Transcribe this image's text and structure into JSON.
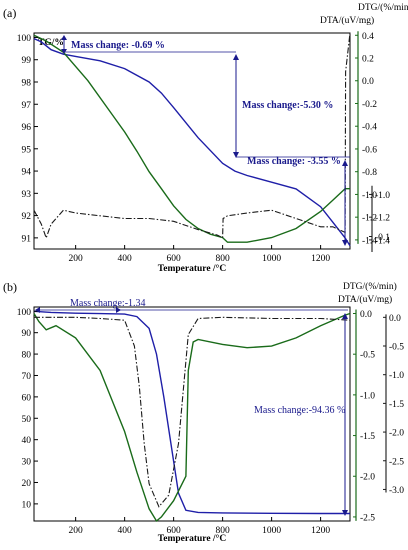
{
  "colors": {
    "tg": "#1f1fa8",
    "dtg": "#1a1a1a",
    "dta": "#1a6b1a",
    "annotation": "#1a1a8c"
  },
  "chart_data": [
    {
      "panel": "(a)",
      "type": "line",
      "xlabel": "Temperature /°C",
      "ylabel_left": "TG/%",
      "ylabel_right_1": "DTG/(%/min)",
      "ylabel_right_2": "DTA/(uV/mg)",
      "xlim": [
        30,
        1320
      ],
      "ylim_left": [
        90.5,
        100.2
      ],
      "ylim_dta": [
        -1.48,
        0.42
      ],
      "ylim_dtg": [
        -0.14,
        0.64
      ],
      "x_ticks": [
        "200",
        "400",
        "600",
        "800",
        "1000",
        "1200"
      ],
      "y_ticks_left": [
        "100",
        "99",
        "98",
        "97",
        "96",
        "95",
        "94",
        "93",
        "92",
        "91"
      ],
      "y_ticks_dta": [
        "0.4",
        "0.2",
        "0.0",
        "-0.2",
        "-0.4",
        "-0.6",
        "-0.8",
        "-1.0",
        "-1.2",
        "-1.4"
      ],
      "y_ticks_dtg": [
        "-1.0",
        "-1.2",
        "-1.4",
        "-0.1"
      ],
      "annotations": [
        "Mass change: -0.69 %",
        "Mass change:-5.30 %",
        "Mass change: -3.55 %"
      ],
      "series": [
        {
          "name": "TG",
          "axis": "left",
          "x": [
            30,
            60,
            100,
            150,
            200,
            300,
            400,
            500,
            550,
            600,
            700,
            800,
            850,
            900,
            1000,
            1100,
            1200,
            1250,
            1300,
            1320
          ],
          "y": [
            99.95,
            99.8,
            99.45,
            99.25,
            99.15,
            98.95,
            98.6,
            98.0,
            97.5,
            96.85,
            95.5,
            94.35,
            94.0,
            93.8,
            93.5,
            93.2,
            92.4,
            91.7,
            91.0,
            90.65
          ]
        },
        {
          "name": "DTA",
          "axis": "dta",
          "x": [
            30,
            80,
            150,
            250,
            350,
            400,
            450,
            500,
            550,
            600,
            650,
            700,
            750,
            800,
            820,
            900,
            1000,
            1100,
            1200,
            1250,
            1300,
            1320
          ],
          "y": [
            0.4,
            0.35,
            0.25,
            0.0,
            -0.3,
            -0.45,
            -0.62,
            -0.8,
            -0.95,
            -1.1,
            -1.22,
            -1.3,
            -1.35,
            -1.38,
            -1.42,
            -1.42,
            -1.38,
            -1.3,
            -1.15,
            -1.05,
            -0.95,
            -0.95
          ]
        },
        {
          "name": "DTG",
          "axis": "dtg",
          "x": [
            30,
            60,
            80,
            100,
            150,
            200,
            300,
            400,
            500,
            600,
            700,
            780,
            800,
            802,
            820,
            900,
            1000,
            1100,
            1200,
            1250,
            1300,
            1302,
            1320
          ],
          "y": [
            0.0,
            -0.05,
            -0.1,
            -0.05,
            0.0,
            -0.01,
            -0.02,
            -0.03,
            -0.03,
            -0.04,
            -0.07,
            -0.09,
            -0.1,
            -0.03,
            -0.02,
            -0.01,
            0.0,
            -0.03,
            -0.06,
            -0.06,
            -0.08,
            0.5,
            0.64
          ]
        }
      ]
    },
    {
      "panel": "(b)",
      "type": "line",
      "xlabel": "Temperature /°C",
      "ylabel_right_1": "DTG/(%/min)",
      "ylabel_right_2": "DTA/(uV/mg)",
      "xlim": [
        30,
        1320
      ],
      "ylim_left": [
        2,
        102
      ],
      "ylim_dta": [
        -2.55,
        0.08
      ],
      "ylim_dtg": [
        -3.55,
        0.18
      ],
      "x_ticks": [
        "200",
        "400",
        "600",
        "800",
        "1000",
        "1200"
      ],
      "y_ticks_left": [
        "100",
        "90",
        "80",
        "70",
        "60",
        "50",
        "40",
        "30",
        "20",
        "10"
      ],
      "y_ticks_dta": [
        "0.0",
        "-0.5",
        "-1.0",
        "-1.5",
        "-2.0",
        "-2.5"
      ],
      "y_ticks_dtg": [
        "0.0",
        "-0.5",
        "-1.0",
        "-1.5",
        "-2.0",
        "-2.5",
        "-3.0"
      ],
      "annotations": [
        "Mass change:-1.34",
        "Mass change:-94.36 %"
      ],
      "series": [
        {
          "name": "TG",
          "axis": "left",
          "x": [
            30,
            100,
            200,
            300,
            400,
            450,
            500,
            530,
            560,
            580,
            600,
            620,
            650,
            700,
            800,
            1000,
            1200,
            1320
          ],
          "y": [
            100,
            99.5,
            99.1,
            98.9,
            98.7,
            97.5,
            92,
            80,
            60,
            45,
            30,
            15,
            7,
            6,
            5.8,
            5.6,
            5.5,
            5.5
          ]
        },
        {
          "name": "DTA",
          "axis": "dta",
          "x": [
            30,
            50,
            80,
            120,
            200,
            300,
            400,
            450,
            500,
            530,
            550,
            600,
            650,
            660,
            680,
            700,
            800,
            900,
            1000,
            1100,
            1200,
            1300,
            1320
          ],
          "y": [
            0.0,
            -0.1,
            -0.2,
            -0.15,
            -0.3,
            -0.7,
            -1.45,
            -1.95,
            -2.4,
            -2.55,
            -2.5,
            -2.3,
            -2.0,
            -0.7,
            -0.35,
            -0.32,
            -0.38,
            -0.42,
            -0.4,
            -0.3,
            -0.15,
            -0.02,
            0.0
          ]
        },
        {
          "name": "DTG",
          "axis": "dtg",
          "x": [
            30,
            100,
            200,
            300,
            400,
            440,
            460,
            480,
            500,
            540,
            580,
            620,
            660,
            700,
            800,
            1000,
            1200,
            1320
          ],
          "y": [
            0.0,
            0.0,
            0.0,
            -0.02,
            -0.05,
            -0.5,
            -1.2,
            -2.2,
            -2.9,
            -3.3,
            -3.1,
            -2.2,
            -0.3,
            -0.02,
            0.0,
            -0.02,
            -0.02,
            -0.05
          ]
        }
      ]
    }
  ]
}
